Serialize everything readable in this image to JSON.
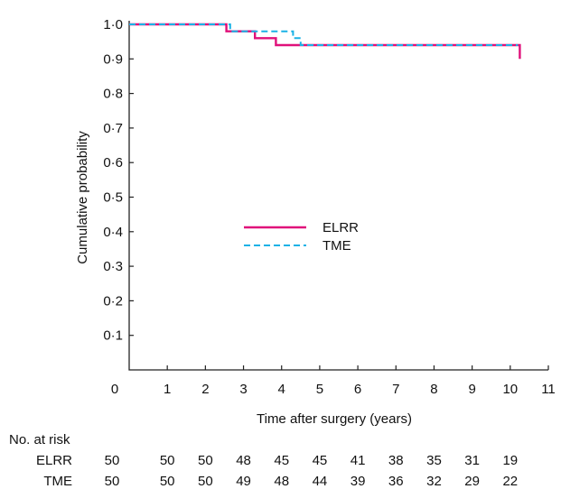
{
  "chart_data": {
    "type": "line",
    "title": "",
    "xlabel": "Time after surgery (years)",
    "ylabel": "Cumulative probability",
    "xlim": [
      0,
      11
    ],
    "ylim": [
      0,
      1.0
    ],
    "x_ticks": [
      "0",
      "1",
      "2",
      "3",
      "4",
      "5",
      "6",
      "7",
      "8",
      "9",
      "10",
      "11"
    ],
    "y_ticks": [
      "0·1",
      "0·2",
      "0·3",
      "0·4",
      "0·5",
      "0·6",
      "0·7",
      "0·8",
      "0·9",
      "1·0"
    ],
    "grid": false,
    "legend_position": "center",
    "series": [
      {
        "name": "ELRR",
        "color": "#e0107a",
        "style": "solid",
        "points": [
          [
            0,
            1.0
          ],
          [
            2.55,
            1.0
          ],
          [
            2.55,
            0.98
          ],
          [
            3.3,
            0.98
          ],
          [
            3.3,
            0.96
          ],
          [
            3.85,
            0.96
          ],
          [
            3.85,
            0.94
          ],
          [
            10.25,
            0.94
          ],
          [
            10.25,
            0.9
          ]
        ]
      },
      {
        "name": "TME",
        "color": "#1ab2e6",
        "style": "dashed",
        "points": [
          [
            0,
            1.0
          ],
          [
            2.65,
            1.0
          ],
          [
            2.65,
            0.98
          ],
          [
            3.8,
            0.98
          ],
          [
            3.8,
            0.98
          ],
          [
            4.3,
            0.98
          ],
          [
            4.3,
            0.96
          ],
          [
            4.5,
            0.96
          ],
          [
            4.5,
            0.94
          ],
          [
            10.2,
            0.94
          ]
        ]
      }
    ],
    "risk_table": {
      "header": "No. at risk",
      "rows": [
        {
          "label": "ELRR",
          "values": [
            "50",
            "50",
            "50",
            "48",
            "45",
            "45",
            "41",
            "38",
            "35",
            "31",
            "19"
          ]
        },
        {
          "label": "TME",
          "values": [
            "50",
            "50",
            "50",
            "49",
            "48",
            "44",
            "39",
            "36",
            "32",
            "29",
            "22"
          ]
        }
      ]
    }
  }
}
